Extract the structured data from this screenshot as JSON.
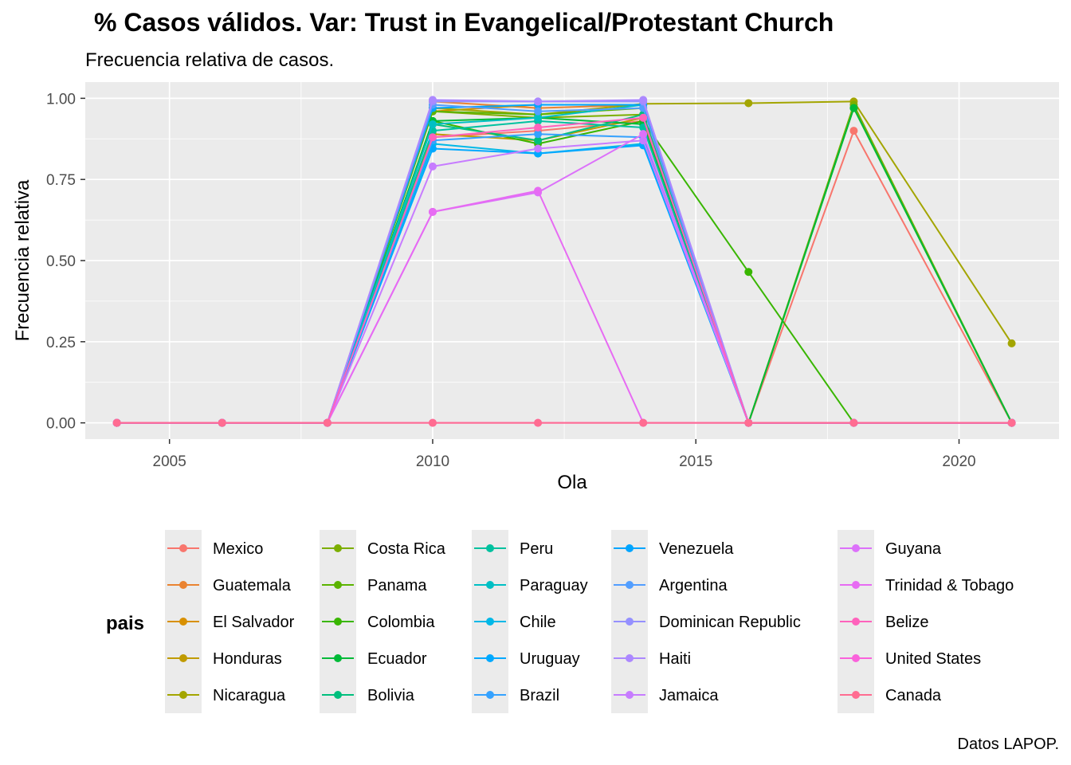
{
  "chart_data": {
    "type": "line",
    "title": "% Casos válidos. Var: Trust in Evangelical/Protestant Church",
    "subtitle": "Frecuencia relativa de casos.",
    "xlabel": "Ola",
    "ylabel": "Frecuencia relativa",
    "caption": "Datos LAPOP.",
    "legend_title": "pais",
    "legend_position": "bottom",
    "grid": true,
    "xlim": [
      2003.4,
      2021.9
    ],
    "ylim": [
      -0.05,
      1.05
    ],
    "x_ticks": [
      2005,
      2010,
      2015,
      2020
    ],
    "y_ticks": [
      0,
      0.25,
      0.5,
      0.75,
      1
    ],
    "y_tick_labels": [
      "0.00",
      "0.25",
      "0.50",
      "0.75",
      "1.00"
    ],
    "x": [
      2004,
      2006,
      2008,
      2010,
      2012,
      2014,
      2016,
      2018,
      2021
    ],
    "series": [
      {
        "name": "Mexico",
        "color": "#F8766D",
        "values": [
          0,
          0,
          0,
          0.88,
          0.9,
          0.93,
          0,
          0.9,
          0
        ]
      },
      {
        "name": "Guatemala",
        "color": "#EA8331",
        "values": [
          0,
          0,
          0,
          0.99,
          0.97,
          0.98,
          0,
          0,
          0
        ]
      },
      {
        "name": "El Salvador",
        "color": "#D89000",
        "values": [
          0,
          0,
          0,
          0.96,
          0.98,
          0.98,
          0,
          0,
          0
        ]
      },
      {
        "name": "Honduras",
        "color": "#C09B00",
        "values": [
          0,
          0,
          0,
          0.89,
          0.87,
          0.94,
          0,
          0,
          0
        ]
      },
      {
        "name": "Nicaragua",
        "color": "#A3A500",
        "values": [
          0,
          0,
          0,
          0.97,
          0.95,
          0.983,
          0.985,
          0.99,
          0.245
        ]
      },
      {
        "name": "Costa Rica",
        "color": "#7CAE00",
        "values": [
          0,
          0,
          0,
          0.96,
          0.94,
          0.95,
          0,
          0.98,
          0
        ]
      },
      {
        "name": "Panama",
        "color": "#5BB300",
        "values": [
          0,
          0,
          0,
          0.96,
          0.95,
          0.97,
          0,
          0.97,
          0
        ]
      },
      {
        "name": "Colombia",
        "color": "#39B600",
        "values": [
          0,
          0,
          0,
          0.93,
          0.86,
          0.93,
          0.465,
          0,
          0
        ]
      },
      {
        "name": "Ecuador",
        "color": "#00BA38",
        "values": [
          0,
          0,
          0,
          0.93,
          0.94,
          0.92,
          0,
          0.97,
          0
        ]
      },
      {
        "name": "Bolivia",
        "color": "#00BF7D",
        "values": [
          0,
          0,
          0,
          0.92,
          0.87,
          0.95,
          0,
          0,
          0
        ]
      },
      {
        "name": "Peru",
        "color": "#00C19F",
        "values": [
          0,
          0,
          0,
          0.9,
          0.93,
          0.91,
          0,
          0,
          0
        ]
      },
      {
        "name": "Paraguay",
        "color": "#00BFC4",
        "values": [
          0,
          0,
          0,
          0.92,
          0.94,
          0.98,
          0,
          0,
          0
        ]
      },
      {
        "name": "Chile",
        "color": "#00B8E7",
        "values": [
          0,
          0,
          0,
          0.86,
          0.83,
          0.86,
          0,
          0,
          0
        ]
      },
      {
        "name": "Uruguay",
        "color": "#00A9FF",
        "values": [
          0,
          0,
          0,
          0.845,
          0.83,
          0.855,
          0,
          0,
          0
        ]
      },
      {
        "name": "Brazil",
        "color": "#35A2FF",
        "values": [
          0,
          0,
          0,
          0.87,
          0.89,
          0.88,
          0,
          0,
          0
        ]
      },
      {
        "name": "Venezuela",
        "color": "#00A5FF",
        "values": [
          0,
          0,
          0,
          0.97,
          0.98,
          0.98,
          0,
          0,
          0
        ]
      },
      {
        "name": "Argentina",
        "color": "#529EFF",
        "values": [
          0,
          0,
          0,
          0.98,
          0.96,
          0.97,
          0,
          0,
          0
        ]
      },
      {
        "name": "Dominican Republic",
        "color": "#9590FF",
        "values": [
          0,
          0,
          0,
          0.99,
          0.99,
          0.99,
          0,
          0,
          0
        ]
      },
      {
        "name": "Haiti",
        "color": "#AC88FF",
        "values": [
          0,
          0,
          0,
          0.995,
          0.99,
          0.995,
          0,
          0,
          0
        ]
      },
      {
        "name": "Jamaica",
        "color": "#C77CFF",
        "values": [
          0,
          0,
          0,
          0.79,
          0.845,
          0.87,
          0,
          0,
          0
        ]
      },
      {
        "name": "Guyana",
        "color": "#DC71FA",
        "values": [
          0,
          0,
          0,
          0.65,
          0.71,
          0.89,
          0,
          0,
          0
        ]
      },
      {
        "name": "Trinidad & Tobago",
        "color": "#E76BF3",
        "values": [
          0,
          0,
          0,
          0.65,
          0.715,
          0,
          0,
          0,
          0
        ]
      },
      {
        "name": "Belize",
        "color": "#FF62BC",
        "values": [
          0,
          0,
          0,
          0.88,
          0.91,
          0.94,
          0,
          0,
          0
        ]
      },
      {
        "name": "United States",
        "color": "#FA62DB",
        "values": [
          0,
          0,
          0,
          0,
          0,
          0,
          0,
          0,
          0
        ]
      },
      {
        "name": "Canada",
        "color": "#FF6C91",
        "values": [
          0,
          0,
          0,
          0,
          0,
          0,
          0,
          0,
          0
        ]
      }
    ]
  }
}
